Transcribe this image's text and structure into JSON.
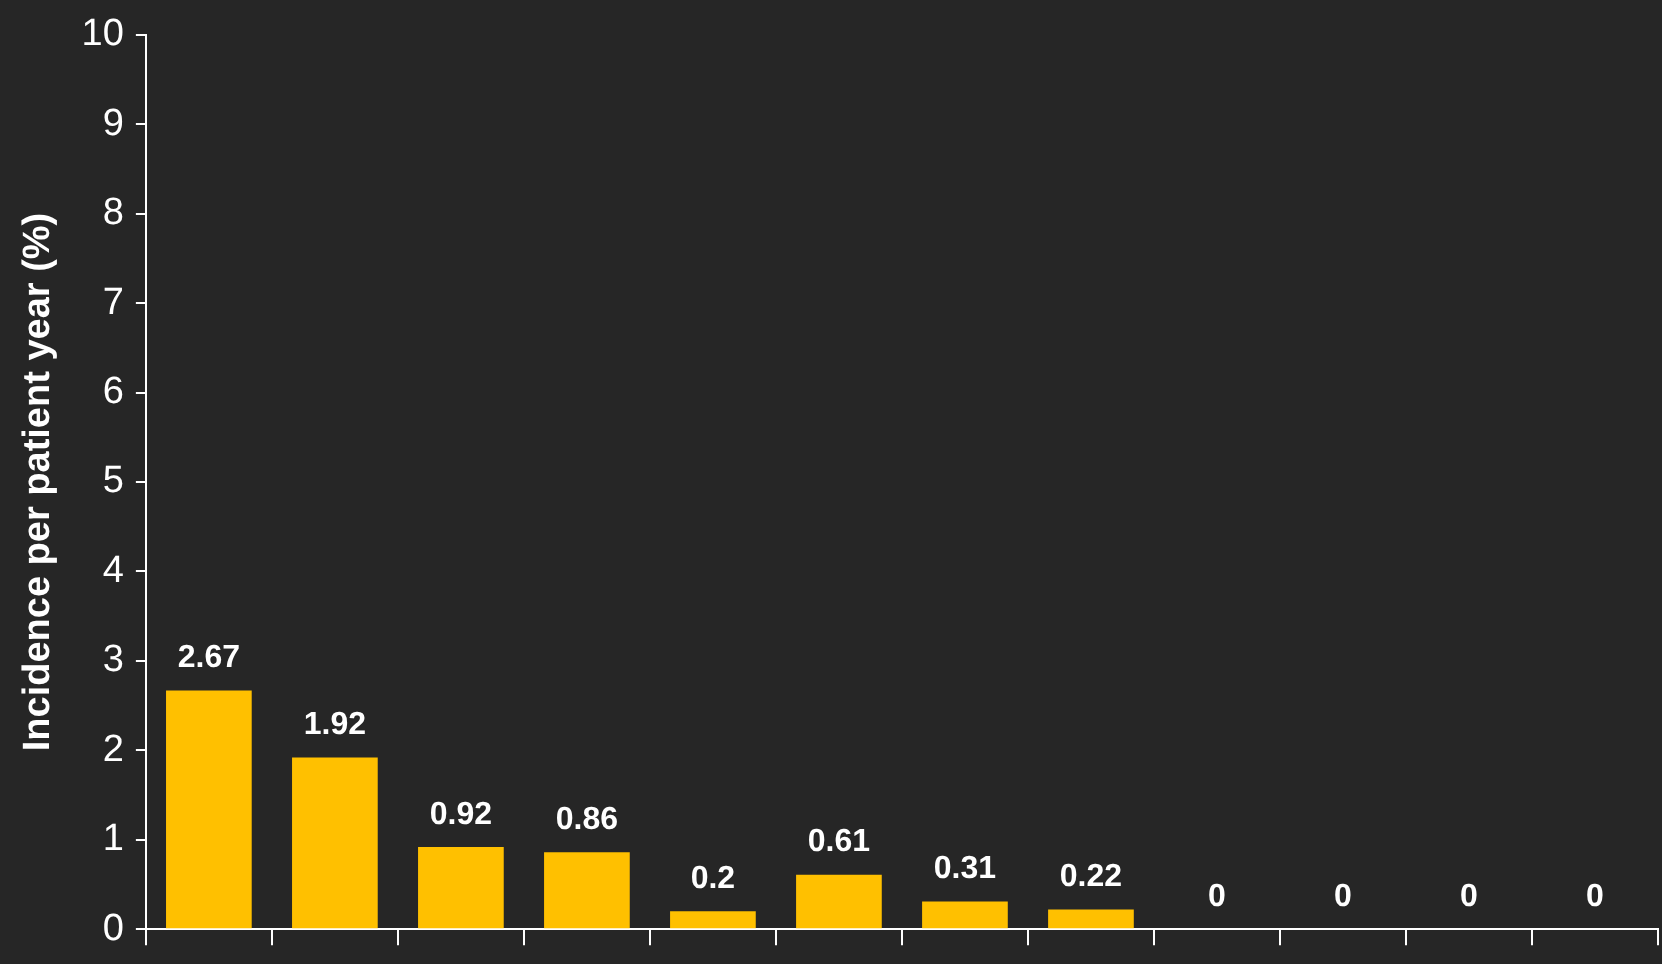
{
  "chart_data": {
    "type": "bar",
    "ylabel": "Incidence per patient year (%)",
    "categories": [
      null,
      null,
      null,
      null,
      null,
      null,
      null,
      null,
      null,
      null,
      null,
      null
    ],
    "values": [
      2.67,
      1.92,
      0.92,
      0.86,
      0.2,
      0.61,
      0.31,
      0.22,
      0,
      0,
      0,
      0
    ],
    "color": "#ffc000",
    "ylim": [
      0,
      10
    ],
    "yticks": [
      0,
      1,
      2,
      3,
      4,
      5,
      6,
      7,
      8,
      9,
      10
    ],
    "grid": false,
    "data_labels": true
  }
}
